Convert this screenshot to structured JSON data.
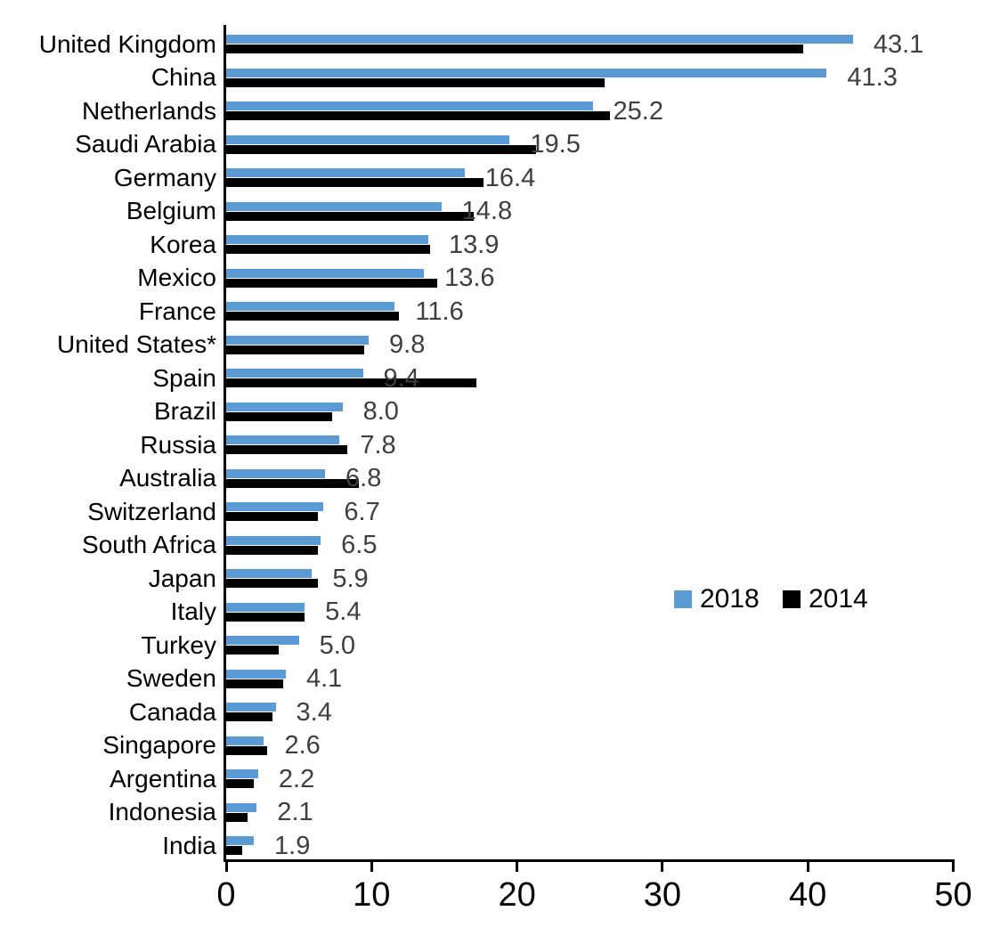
{
  "chart_data": {
    "type": "bar",
    "orientation": "horizontal",
    "title": "",
    "xlabel": "",
    "ylabel": "",
    "xlim": [
      0,
      50
    ],
    "xticks": [
      "0",
      "10",
      "20",
      "30",
      "40",
      "50"
    ],
    "grid": false,
    "legend": {
      "position": "center-right",
      "entries": [
        {
          "name": "2018",
          "color": "#5B9BD5"
        },
        {
          "name": "2014",
          "color": "#000000"
        }
      ]
    },
    "categories": [
      "United Kingdom",
      "China",
      "Netherlands",
      "Saudi Arabia",
      "Germany",
      "Belgium",
      "Korea",
      "Mexico",
      "France",
      "United States*",
      "Spain",
      "Brazil",
      "Russia",
      "Australia",
      "Switzerland",
      "South Africa",
      "Japan",
      "Italy",
      "Turkey",
      "Sweden",
      "Canada",
      "Singapore",
      "Argentina",
      "Indonesia",
      "India"
    ],
    "series": [
      {
        "name": "2018",
        "color": "#5B9BD5",
        "values": [
          43.1,
          41.3,
          25.2,
          19.5,
          16.4,
          14.8,
          13.9,
          13.6,
          11.6,
          9.8,
          9.4,
          8.0,
          7.8,
          6.8,
          6.7,
          6.5,
          5.9,
          5.4,
          5.0,
          4.1,
          3.4,
          2.6,
          2.2,
          2.1,
          1.9
        ],
        "data_labels": [
          "43.1",
          "41.3",
          "25.2",
          "19.5",
          "16.4",
          "14.8",
          "13.9",
          "13.6",
          "11.6",
          "9.8",
          "9.4",
          "8.0",
          "7.8",
          "6.8",
          "6.7",
          "6.5",
          "5.9",
          "5.4",
          "5.0",
          "4.1",
          "3.4",
          "2.6",
          "2.2",
          "2.1",
          "1.9"
        ],
        "data_labels_shown": true
      },
      {
        "name": "2014",
        "color": "#000000",
        "values": [
          39.7,
          26.0,
          26.4,
          21.3,
          17.7,
          17.0,
          14.0,
          14.5,
          11.9,
          9.5,
          17.2,
          7.3,
          8.3,
          9.1,
          6.3,
          6.3,
          6.3,
          5.4,
          3.6,
          3.9,
          3.2,
          2.8,
          1.9,
          1.5,
          1.1
        ],
        "data_labels_shown": false
      }
    ],
    "value_label_color": "#3F3F3F",
    "axis_color": "#000000"
  }
}
